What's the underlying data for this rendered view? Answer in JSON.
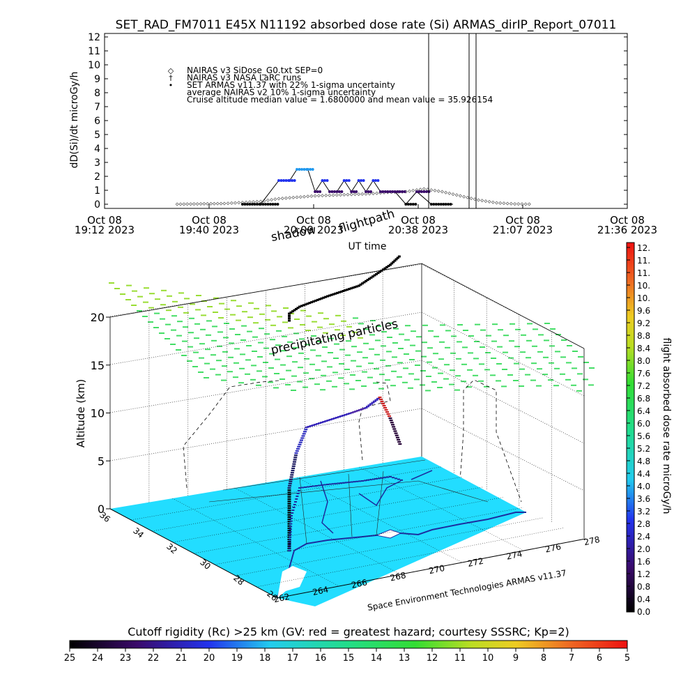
{
  "title": "SET_RAD_FM7011  E45X N11192 absorbed dose rate (Si) ARMAS_dirIP_Report_07011",
  "top_panel": {
    "ylabel": "dD(Si)/dt microGy/h",
    "yticks": [
      "0",
      "1",
      "2",
      "3",
      "4",
      "5",
      "6",
      "7",
      "8",
      "9",
      "10",
      "11",
      "12"
    ],
    "xticks": [
      {
        "day": "Oct 08",
        "time": "19:12 2023"
      },
      {
        "day": "Oct 08",
        "time": "19:40 2023"
      },
      {
        "day": "Oct 08",
        "time": "20:09 2023"
      },
      {
        "day": "Oct 08",
        "time": "20:38 2023"
      },
      {
        "day": "Oct 08",
        "time": "21:07 2023"
      },
      {
        "day": "Oct 08",
        "time": "21:36 2023"
      }
    ],
    "xlabel": "UT time",
    "legend": [
      {
        "symbol": "◇",
        "text": "NAIRAS v3 SiDose_G0.txt SEP=0"
      },
      {
        "symbol": "†",
        "text": "NAIRAS v3 NASA LaRC runs"
      },
      {
        "symbol": "•",
        "text": "SET ARMAS v11.37 with 22% 1-sigma uncertainty"
      },
      {
        "symbol": "",
        "text": "average NAIRAS v2 10% 1-sigma uncertainty"
      },
      {
        "symbol": "",
        "text": "Cruise altitude median value = 1.6800000 and mean value = 35.926154"
      }
    ]
  },
  "scene": {
    "overlay_labels": {
      "shadow": "shadow",
      "flightpath": "flightpath",
      "precip": "precipitating particles"
    },
    "zlabel": "Altitude (km)",
    "zticks": [
      "0",
      "5",
      "10",
      "15",
      "20"
    ],
    "lat_ticks": [
      "36",
      "34",
      "32",
      "30",
      "28",
      "26"
    ],
    "lon_ticks": [
      "262",
      "264",
      "266",
      "268",
      "270",
      "272",
      "274",
      "276",
      "278"
    ],
    "credit": "Space Environment Technologies ARMAS v11.37"
  },
  "right_colorbar": {
    "label": "flight absorbed dose rate microGy/h",
    "ticks": [
      "12.",
      "11.",
      "11.",
      "10.",
      "10.",
      "9.6",
      "9.2",
      "8.8",
      "8.4",
      "8.0",
      "7.6",
      "7.2",
      "6.8",
      "6.4",
      "6.0",
      "5.6",
      "5.2",
      "4.8",
      "4.4",
      "4.0",
      "3.6",
      "3.2",
      "2.8",
      "2.4",
      "2.0",
      "1.6",
      "1.2",
      "0.8",
      "0.4",
      "0.0"
    ]
  },
  "bottom_colorbar": {
    "title": "Cutoff rigidity (Rc) >25 km (GV: red = greatest hazard; courtesy SSSRC; Kp=2)",
    "ticks": [
      "25",
      "24",
      "23",
      "22",
      "21",
      "20",
      "19",
      "18",
      "17",
      "16",
      "15",
      "14",
      "13",
      "12",
      "11",
      "10",
      "9",
      "8",
      "7",
      "6",
      "5"
    ]
  },
  "colors": {
    "armas_dark": "#2233ee",
    "armas_light": "#2299ee",
    "ground": "#22ddff",
    "precip_green": "#44dd66",
    "precip_yellowgreen": "#99dd33"
  },
  "chart_data": [
    {
      "type": "line",
      "title": "SET_RAD_FM7011  E45X N11192 absorbed dose rate (Si) ARMAS_dirIP_Report_07011",
      "xlabel": "UT time",
      "ylabel": "dD(Si)/dt microGy/h",
      "xlim": [
        "19:12",
        "21:36"
      ],
      "ylim": [
        0,
        12
      ],
      "series": [
        {
          "name": "SET ARMAS v11.37 with 22% 1-sigma uncertainty",
          "x": [
            "19:50",
            "19:55",
            "20:00",
            "20:03",
            "20:05",
            "20:08",
            "20:10",
            "20:12",
            "20:14",
            "20:16",
            "20:18",
            "20:20",
            "20:22",
            "20:24",
            "20:26",
            "20:28",
            "20:30",
            "20:32",
            "20:35",
            "20:38",
            "20:42",
            "20:46",
            "20:48"
          ],
          "values": [
            0.0,
            0.0,
            1.7,
            1.7,
            2.5,
            2.5,
            0.9,
            1.7,
            0.9,
            0.9,
            1.7,
            0.9,
            1.7,
            0.9,
            1.7,
            0.9,
            0.9,
            0.9,
            0.0,
            0.9,
            0.0,
            0.0,
            0.0
          ]
        },
        {
          "name": "NAIRAS v3 SiDose_G0.txt SEP=0",
          "x": [
            "19:32",
            "19:45",
            "19:55",
            "20:00",
            "20:05",
            "20:10",
            "20:15",
            "20:20",
            "20:25",
            "20:30",
            "20:35",
            "20:40",
            "20:45",
            "20:50",
            "20:55",
            "21:00",
            "21:05",
            "21:10"
          ],
          "values": [
            0.0,
            0.05,
            0.2,
            0.4,
            0.5,
            0.6,
            0.65,
            0.7,
            0.75,
            0.85,
            0.9,
            1.1,
            0.9,
            0.6,
            0.3,
            0.1,
            0.02,
            0.0
          ]
        }
      ],
      "annotations": [
        "Cruise altitude median value = 1.6800000 and mean value = 35.926154"
      ]
    },
    {
      "type": "scatter",
      "description_type": "3d-trajectory",
      "zlabel": "Altitude (km)",
      "zlim": [
        0,
        20
      ],
      "lat_range": [
        26,
        36
      ],
      "lon_range": [
        262,
        278
      ],
      "colorbar_label": "flight absorbed dose rate microGy/h",
      "colorbar_range": [
        0.0,
        12.0
      ]
    }
  ]
}
